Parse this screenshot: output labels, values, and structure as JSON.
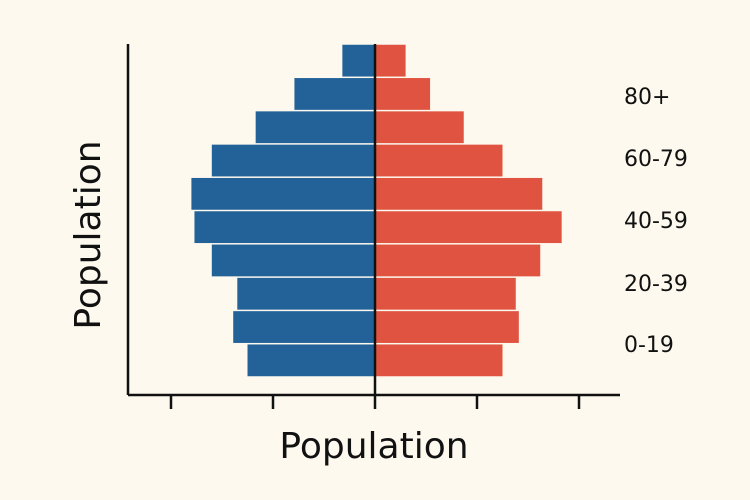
{
  "chart_data": {
    "type": "bar",
    "orientation": "horizontal",
    "subtype": "population-pyramid",
    "title": "",
    "xlabel": "Population",
    "ylabel": "Population",
    "age_group_labels": [
      "0-19",
      "20-39",
      "40-59",
      "60-79",
      "80+"
    ],
    "bars_bottom_to_top": 10,
    "series": [
      {
        "side": "left",
        "color": "#236299",
        "values": [
          1.25,
          1.39,
          1.35,
          1.6,
          1.77,
          1.8,
          1.6,
          1.17,
          0.79,
          0.32
        ]
      },
      {
        "side": "right",
        "color": "#e05340",
        "values": [
          1.25,
          1.41,
          1.38,
          1.62,
          1.83,
          1.64,
          1.25,
          0.87,
          0.54,
          0.3
        ]
      }
    ],
    "xlim": [
      -2,
      2
    ],
    "x_ticks": [
      -2,
      -1,
      0,
      1,
      2
    ],
    "grid": false,
    "legend": "none"
  }
}
